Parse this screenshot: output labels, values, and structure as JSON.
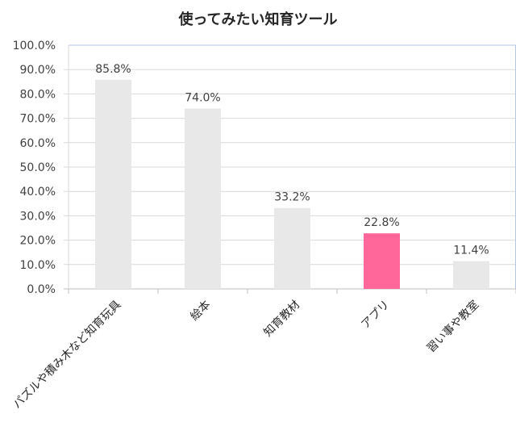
{
  "chart_data": {
    "type": "bar",
    "title": "使ってみたい知育ツール",
    "categories": [
      "パズルや積み木など知育玩具",
      "絵本",
      "知育教材",
      "アプリ",
      "習い事や教室"
    ],
    "values": [
      85.8,
      74.0,
      33.2,
      22.8,
      11.4
    ],
    "data_labels": [
      "85.8%",
      "74.0%",
      "33.2%",
      "22.8%",
      "11.4%"
    ],
    "ylim": [
      0,
      100
    ],
    "yticks": [
      "0.0%",
      "10.0%",
      "20.0%",
      "30.0%",
      "40.0%",
      "50.0%",
      "60.0%",
      "70.0%",
      "80.0%",
      "90.0%",
      "100.0%"
    ],
    "grid": true,
    "xlabel": "",
    "ylabel": "",
    "colors": {
      "default": "#e8e8e8",
      "highlight": "#ff6699",
      "highlight_category": "アプリ"
    }
  }
}
